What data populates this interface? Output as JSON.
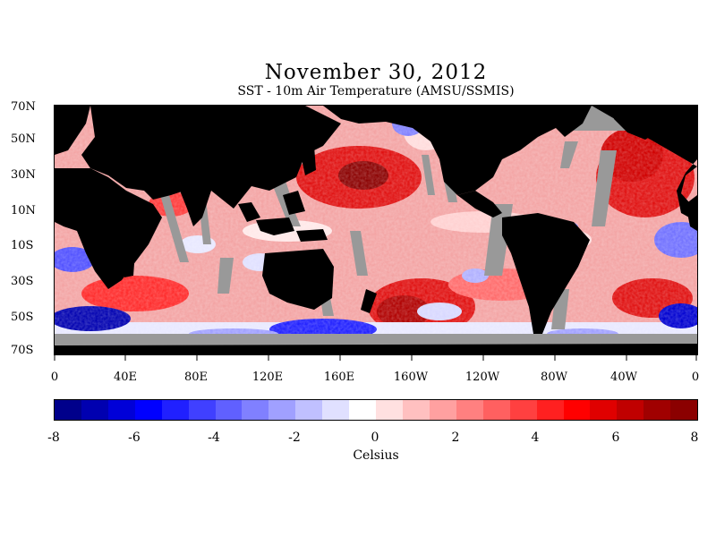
{
  "title": "November 30, 2012",
  "subtitle": "SST - 10m Air Temperature (AMSU/SSMIS)",
  "lat_labels": [
    "70N",
    "50N",
    "30N",
    "10N",
    "10S",
    "30S",
    "50S",
    "70S"
  ],
  "lon_labels": [
    "0",
    "40E",
    "80E",
    "120E",
    "160E",
    "160W",
    "120W",
    "80W",
    "40W",
    "0"
  ],
  "colorbar": {
    "labels": [
      "-8",
      "-6",
      "-4",
      "-2",
      "0",
      "2",
      "4",
      "6",
      "8"
    ],
    "unit": "Celsius",
    "colors": [
      "#00008b",
      "#0000b0",
      "#0000d8",
      "#0000ff",
      "#2020ff",
      "#4040ff",
      "#6060ff",
      "#8080ff",
      "#a0a0ff",
      "#c0c0ff",
      "#e0e0ff",
      "#ffffff",
      "#ffe0e0",
      "#ffc0c0",
      "#ffa0a0",
      "#ff8080",
      "#ff6060",
      "#ff4040",
      "#ff2020",
      "#ff0000",
      "#e00000",
      "#c00000",
      "#a00000",
      "#8b0000"
    ]
  },
  "colors": {
    "land": "#000000",
    "missing": "#999999"
  }
}
